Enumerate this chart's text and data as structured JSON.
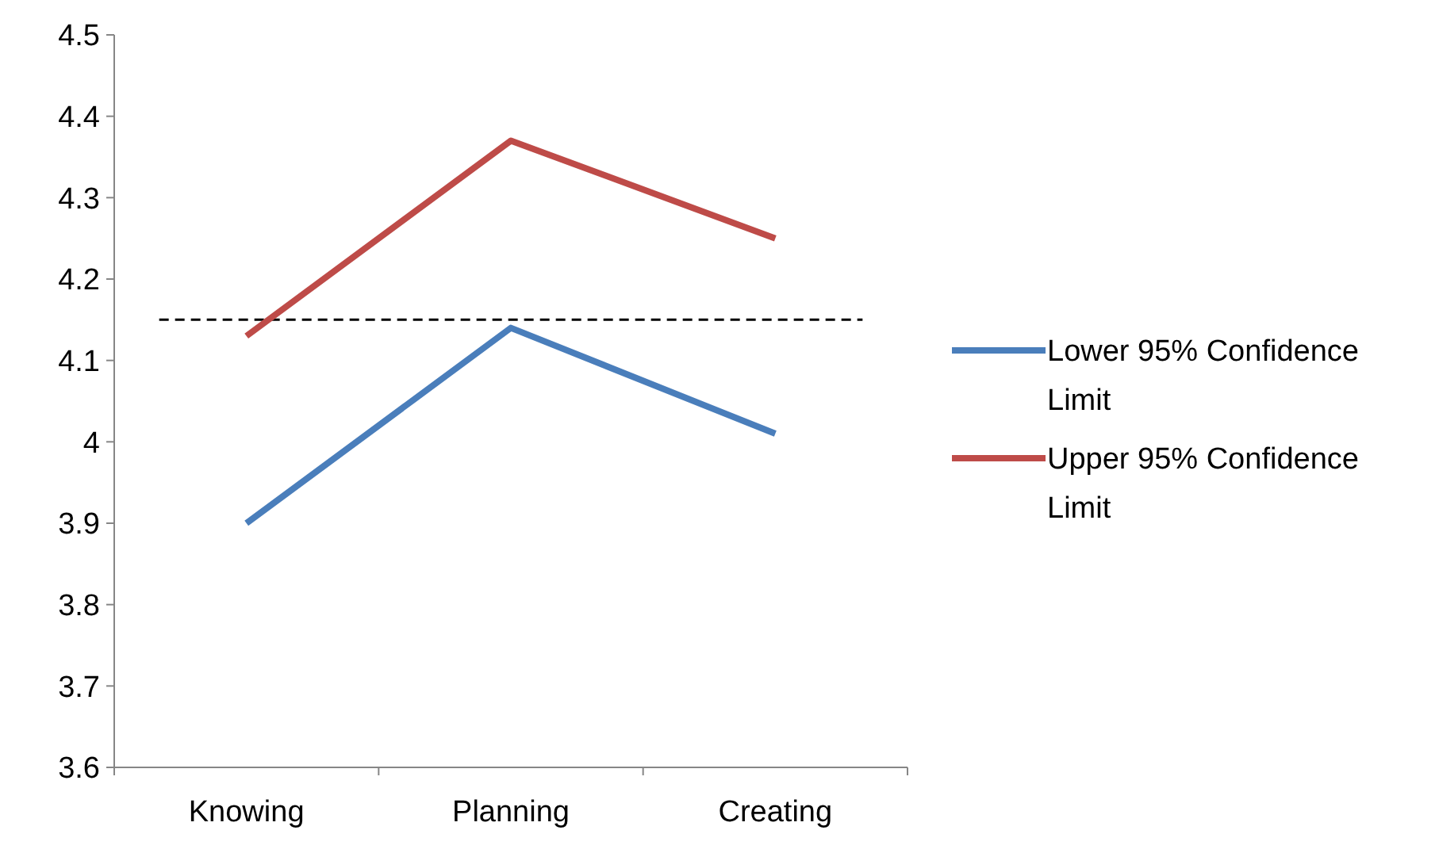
{
  "chart_data": {
    "type": "line",
    "categories": [
      "Knowing",
      "Planning",
      "Creating"
    ],
    "series": [
      {
        "name": "Lower 95% Confidence Limit",
        "color": "#4a7ebb",
        "values": [
          3.9,
          4.14,
          4.01
        ]
      },
      {
        "name": "Upper 95% Confidence Limit",
        "color": "#be4b48",
        "values": [
          4.13,
          4.37,
          4.25
        ]
      }
    ],
    "ylim": [
      3.6,
      4.5
    ],
    "yticks": [
      3.6,
      3.7,
      3.8,
      3.9,
      4,
      4.1,
      4.2,
      4.3,
      4.4,
      4.5
    ],
    "ref_lines": [
      {
        "axis": "y",
        "value": 4.15,
        "color": "#000000",
        "line_style": "dashed"
      }
    ],
    "legend": "right",
    "grid": false
  }
}
